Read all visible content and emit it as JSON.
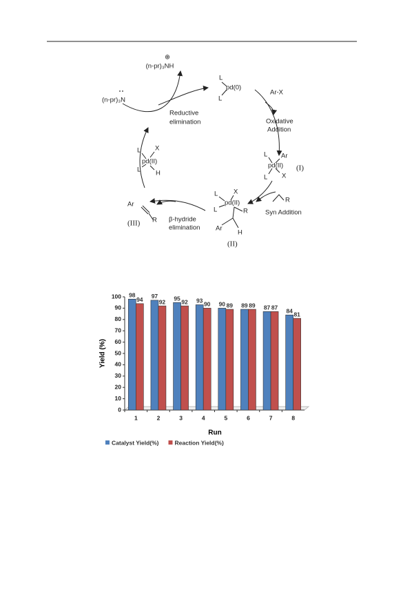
{
  "diagram": {
    "labels": [
      "⊕",
      "(n-pr)₃NH",
      "(n-pr)₃N",
      "L",
      "pd(0)",
      "L",
      "Ar-X",
      "Oxidative",
      "Addition",
      "Reductive",
      "elimination",
      "L",
      "Ar",
      "pd(II)",
      "L",
      "X",
      "(I)",
      "L",
      "X",
      "pd(II)",
      "L",
      "H",
      "R",
      "Syn Addition",
      "L",
      "X",
      "pd(II)",
      "L",
      "R",
      "Ar",
      "H",
      "(II)",
      "Ar",
      "R",
      "(III)",
      "β-hydride",
      "elimination"
    ]
  },
  "chart_data": {
    "type": "bar",
    "x_label": "Run",
    "y_label": "Yield (%)",
    "categories": [
      "1",
      "2",
      "3",
      "4",
      "5",
      "6",
      "7",
      "8"
    ],
    "series": [
      {
        "name": "Catalyst Yield(%)",
        "color": "#4f81bd",
        "values": [
          98,
          97,
          95,
          93,
          90,
          89,
          87,
          84
        ]
      },
      {
        "name": "Reaction Yield(%)",
        "color": "#c0504d",
        "values": [
          94,
          92,
          92,
          90,
          89,
          89,
          87,
          81
        ]
      }
    ],
    "ylim": [
      0,
      100
    ],
    "yticks": [
      0,
      10,
      20,
      30,
      40,
      50,
      60,
      70,
      80,
      90,
      100
    ],
    "grid": false
  }
}
